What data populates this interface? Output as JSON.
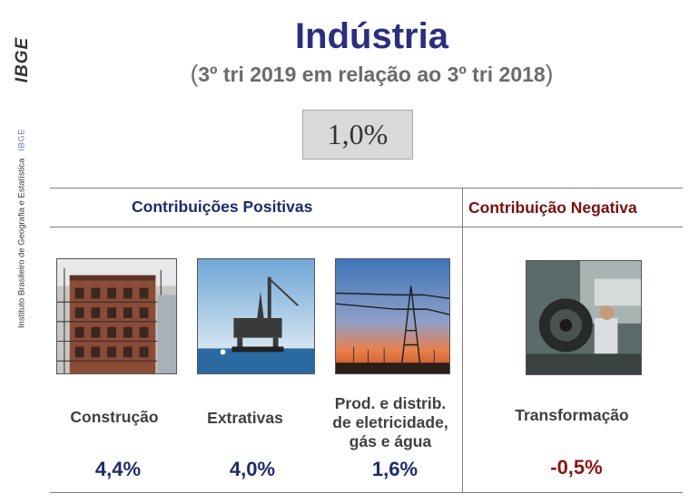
{
  "sidebar": {
    "logo_text": "IBGE",
    "institute": "Instituto Brasileiro de Geografia e Estatística",
    "tag": "IBGE"
  },
  "header": {
    "title": "Indústria",
    "subtitle_open": "(",
    "subtitle": "3º tri 2019 em relação ao 3º tri 2018",
    "subtitle_close": ")"
  },
  "total": "1,0%",
  "positive": {
    "heading": "Contribuições Positivas",
    "items": [
      {
        "label": "Construção",
        "value": "4,4%"
      },
      {
        "label": "Extrativas",
        "value": "4,0%"
      },
      {
        "label_lines": [
          "Prod. e distrib.",
          "de eletricidade,",
          "gás e água"
        ],
        "value": "1,6%"
      }
    ]
  },
  "negative": {
    "heading": "Contribuição Negativa",
    "items": [
      {
        "label": "Transformação",
        "value": "-0,5%"
      }
    ]
  },
  "colors": {
    "title": "#2b2e7e",
    "positive": "#1f2a6b",
    "negative": "#8b1313"
  }
}
